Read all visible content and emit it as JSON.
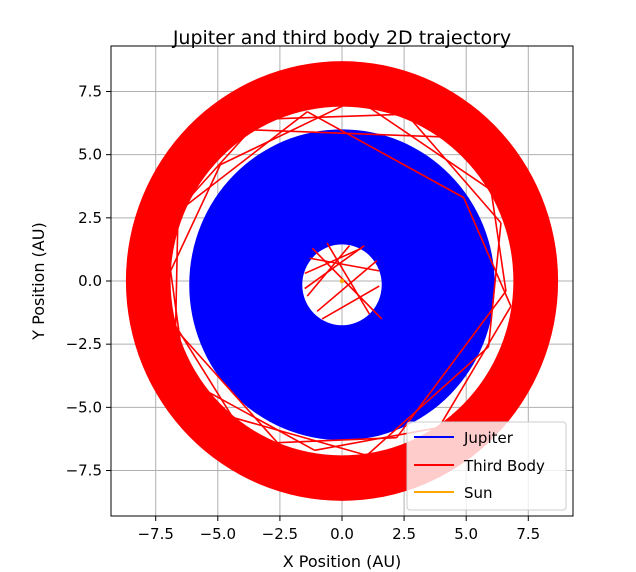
{
  "chart_data": {
    "type": "line",
    "title": "Jupiter and third body 2D trajectory",
    "xlabel": "X Position (AU)",
    "ylabel": "Y Position (AU)",
    "xlim": [
      -9.3,
      9.3
    ],
    "ylim": [
      -9.3,
      9.3
    ],
    "xticks": [
      -7.5,
      -5.0,
      -2.5,
      0.0,
      2.5,
      5.0,
      7.5
    ],
    "yticks": [
      -7.5,
      -5.0,
      -2.5,
      0.0,
      2.5,
      5.0,
      7.5
    ],
    "xtick_labels": [
      "−7.5",
      "−5.0",
      "−2.5",
      "0.0",
      "2.5",
      "5.0",
      "7.5"
    ],
    "ytick_labels": [
      "−7.5",
      "−5.0",
      "−2.5",
      "0.0",
      "2.5",
      "5.0",
      "7.5"
    ],
    "grid": true,
    "legend_position": "lower-right",
    "series": [
      {
        "name": "Jupiter",
        "color": "#0000ff",
        "description_band": "filled annulus",
        "r_inner": 1.6,
        "r_outer": 6.15,
        "center": [
          0.0,
          -0.15
        ]
      },
      {
        "name": "Third Body",
        "color": "#ff0000",
        "r_inner": 6.9,
        "r_outer": 8.7,
        "center": [
          0.0,
          -0.0
        ],
        "chords": [
          [
            [
              -6.4,
              2.9
            ],
            [
              -1.4,
              6.7
            ]
          ],
          [
            [
              -1.4,
              6.7
            ],
            [
              4.9,
              3.3
            ]
          ],
          [
            [
              4.9,
              3.3
            ],
            [
              6.8,
              -1.0
            ]
          ],
          [
            [
              6.8,
              -1.0
            ],
            [
              3.9,
              -5.8
            ]
          ],
          [
            [
              3.9,
              -5.8
            ],
            [
              -1.1,
              -6.7
            ]
          ],
          [
            [
              -1.1,
              -6.7
            ],
            [
              -6.3,
              -3.9
            ]
          ],
          [
            [
              -6.3,
              -3.9
            ],
            [
              -6.9,
              0.4
            ]
          ],
          [
            [
              -6.9,
              0.4
            ],
            [
              -4.9,
              4.6
            ]
          ],
          [
            [
              -4.9,
              4.6
            ],
            [
              0.6,
              7.2
            ]
          ],
          [
            [
              0.6,
              7.2
            ],
            [
              6.0,
              3.6
            ]
          ],
          [
            [
              6.0,
              3.6
            ],
            [
              6.6,
              -0.4
            ]
          ],
          [
            [
              6.6,
              -0.4
            ],
            [
              2.2,
              -6.2
            ]
          ],
          [
            [
              2.2,
              -6.2
            ],
            [
              -2.6,
              -6.4
            ]
          ],
          [
            [
              -2.6,
              -6.4
            ],
            [
              -6.7,
              -1.9
            ]
          ],
          [
            [
              -6.7,
              -1.9
            ],
            [
              -6.6,
              2.8
            ]
          ],
          [
            [
              -6.6,
              2.8
            ],
            [
              -3.3,
              6.4
            ]
          ],
          [
            [
              -3.3,
              6.4
            ],
            [
              2.6,
              6.6
            ]
          ],
          [
            [
              2.6,
              6.6
            ],
            [
              6.4,
              2.3
            ]
          ],
          [
            [
              6.4,
              2.3
            ],
            [
              5.9,
              -2.6
            ]
          ],
          [
            [
              5.9,
              -2.6
            ],
            [
              1.0,
              -6.9
            ]
          ],
          [
            [
              1.0,
              -6.9
            ],
            [
              -4.4,
              -5.4
            ]
          ],
          [
            [
              -4.4,
              -5.4
            ],
            [
              -7.0,
              -1.3
            ]
          ],
          [
            [
              -4.2,
              6.0
            ],
            [
              4.1,
              5.7
            ]
          ],
          [
            [
              -1.2,
              1.3
            ],
            [
              1.6,
              -1.5
            ]
          ],
          [
            [
              0.3,
              1.4
            ],
            [
              -1.4,
              -0.6
            ]
          ],
          [
            [
              -1.0,
              -1.2
            ],
            [
              1.4,
              0.8
            ]
          ],
          [
            [
              -0.6,
              1.5
            ],
            [
              1.1,
              -1.3
            ]
          ],
          [
            [
              -1.5,
              0.3
            ],
            [
              0.8,
              1.3
            ]
          ],
          [
            [
              1.5,
              -0.2
            ],
            [
              -0.8,
              -1.5
            ]
          ],
          [
            [
              -1.3,
              0.9
            ],
            [
              1.5,
              0.4
            ]
          ],
          [
            [
              0.9,
              1.4
            ],
            [
              -1.5,
              -0.3
            ]
          ]
        ]
      },
      {
        "name": "Sun",
        "color": "#ffa500",
        "points": [
          [
            0.0,
            0.0
          ]
        ]
      }
    ]
  }
}
